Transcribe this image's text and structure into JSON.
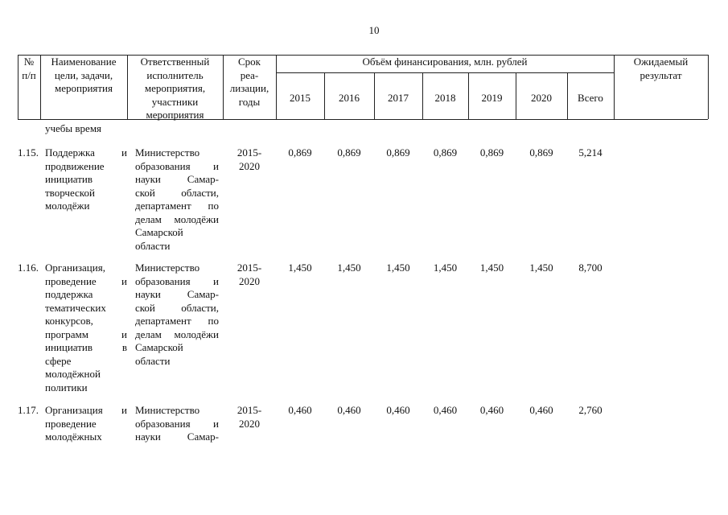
{
  "page_number": "10",
  "table": {
    "header": {
      "num": [
        "№",
        "п/п"
      ],
      "name": [
        "Наименование",
        "цели, задачи,",
        "мероприятия"
      ],
      "responsible": [
        "Ответственный",
        "исполнитель",
        "мероприятия,",
        "участники",
        "мероприятия"
      ],
      "term": [
        "Срок",
        "реа-",
        "лизации,",
        "годы"
      ],
      "funding": "Объём финансирования, млн. рублей",
      "years": [
        "2015",
        "2016",
        "2017",
        "2018",
        "2019",
        "2020",
        "Всего"
      ],
      "result": [
        "Ожидаемый",
        "результат"
      ]
    },
    "rows": [
      {
        "name": [
          "учебы время"
        ]
      },
      {
        "num": "1.15.",
        "name": [
          "Поддержка и",
          "продвижение",
          "инициатив",
          "творческой",
          "молодёжи"
        ],
        "responsible": [
          "Министерство",
          "образования и",
          "науки Самар-",
          "ской области,",
          "департамент по",
          "делам молодёжи",
          "Самарской",
          "области"
        ],
        "term": [
          "2015-",
          "2020"
        ],
        "values": [
          "0,869",
          "0,869",
          "0,869",
          "0,869",
          "0,869",
          "0,869",
          "5,214"
        ]
      },
      {
        "num": "1.16.",
        "name": [
          "Организация,",
          "проведение и",
          "поддержка",
          "тематических",
          "конкурсов,",
          "программ и",
          "инициатив в",
          "сфере",
          "молодёжной",
          "политики"
        ],
        "responsible": [
          "Министерство",
          "образования и",
          "науки Самар-",
          "ской области,",
          "департамент по",
          "делам молодёжи",
          "Самарской",
          "области"
        ],
        "term": [
          "2015-",
          "2020"
        ],
        "values": [
          "1,450",
          "1,450",
          "1,450",
          "1,450",
          "1,450",
          "1,450",
          "8,700"
        ]
      },
      {
        "num": "1.17.",
        "name": [
          "Организация и",
          "проведение",
          "молодёжных"
        ],
        "responsible": [
          "Министерство",
          "образования и",
          "науки Самар-"
        ],
        "term": [
          "2015-",
          "2020"
        ],
        "values": [
          "0,460",
          "0,460",
          "0,460",
          "0,460",
          "0,460",
          "0,460",
          "2,760"
        ]
      }
    ]
  }
}
